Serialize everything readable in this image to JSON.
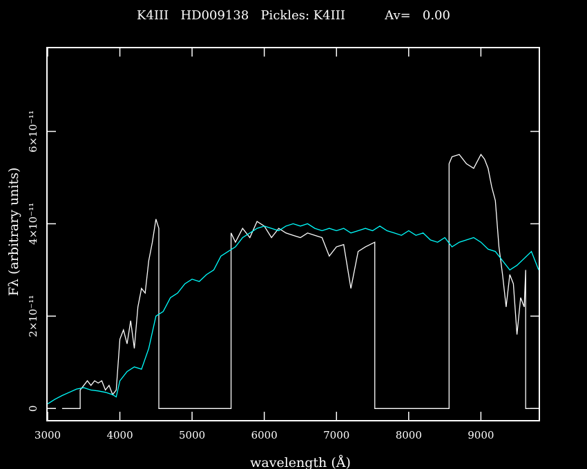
{
  "chart_data": {
    "type": "line",
    "title": "K4III   HD009138   Pickles: K4III          Av=   0.00",
    "xlabel": "wavelength (Å)",
    "ylabel": "Fλ (arbitrary units)",
    "xlim": [
      3000,
      9800
    ],
    "ylim": [
      -0.25,
      7.8
    ],
    "y_unit_note": "x10^-11",
    "xticks": [
      {
        "value": 3000,
        "label": "3000"
      },
      {
        "value": 4000,
        "label": "4000"
      },
      {
        "value": 5000,
        "label": "5000"
      },
      {
        "value": 6000,
        "label": "6000"
      },
      {
        "value": 7000,
        "label": "7000"
      },
      {
        "value": 8000,
        "label": "8000"
      },
      {
        "value": 9000,
        "label": "9000"
      }
    ],
    "yticks": [
      {
        "value": 0,
        "label": "0"
      },
      {
        "value": 2,
        "label": "2×10⁻¹¹"
      },
      {
        "value": 4,
        "label": "4×10⁻¹¹"
      },
      {
        "value": 6,
        "label": "6×10⁻¹¹"
      }
    ],
    "grid": false,
    "legend": "none",
    "series": [
      {
        "color": "#ffffff",
        "x": [
          3200,
          3450,
          3450,
          3500,
          3550,
          3600,
          3650,
          3700,
          3750,
          3800,
          3850,
          3900,
          3950,
          4000,
          4050,
          4100,
          4150,
          4200,
          4250,
          4300,
          4350,
          4400,
          4450,
          4500,
          4540,
          4540,
          5540,
          5540,
          5600,
          5700,
          5800,
          5900,
          6000,
          6100,
          6200,
          6300,
          6400,
          6500,
          6600,
          6700,
          6800,
          6900,
          7000,
          7100,
          7200,
          7300,
          7400,
          7530,
          7530,
          8560,
          8560,
          8600,
          8700,
          8800,
          8900,
          9000,
          9050,
          9100,
          9150,
          9200,
          9250,
          9300,
          9350,
          9400,
          9450,
          9500,
          9550,
          9600,
          9620,
          9620,
          9800
        ],
        "y": [
          0,
          0,
          0.4,
          0.5,
          0.6,
          0.5,
          0.6,
          0.55,
          0.6,
          0.4,
          0.5,
          0.3,
          0.4,
          1.5,
          1.7,
          1.4,
          1.9,
          1.3,
          2.2,
          2.6,
          2.5,
          3.2,
          3.6,
          4.1,
          3.9,
          0,
          0,
          3.8,
          3.6,
          3.9,
          3.7,
          4.05,
          3.95,
          3.7,
          3.9,
          3.8,
          3.75,
          3.7,
          3.8,
          3.75,
          3.7,
          3.3,
          3.5,
          3.55,
          2.6,
          3.4,
          3.5,
          3.6,
          0,
          0,
          5.3,
          5.45,
          5.5,
          5.3,
          5.2,
          5.5,
          5.4,
          5.2,
          4.8,
          4.5,
          3.5,
          2.9,
          2.2,
          2.9,
          2.7,
          1.6,
          2.4,
          2.2,
          3.0,
          0,
          0
        ]
      },
      {
        "color": "#00ffff",
        "x": [
          3000,
          3100,
          3200,
          3300,
          3400,
          3500,
          3600,
          3700,
          3800,
          3900,
          3950,
          4000,
          4100,
          4200,
          4300,
          4400,
          4500,
          4600,
          4700,
          4800,
          4900,
          5000,
          5100,
          5200,
          5300,
          5400,
          5500,
          5600,
          5700,
          5800,
          5900,
          6000,
          6100,
          6200,
          6300,
          6400,
          6500,
          6600,
          6700,
          6800,
          6900,
          7000,
          7100,
          7200,
          7300,
          7400,
          7500,
          7600,
          7700,
          7800,
          7900,
          8000,
          8100,
          8200,
          8300,
          8400,
          8500,
          8600,
          8700,
          8800,
          8900,
          9000,
          9100,
          9200,
          9300,
          9400,
          9500,
          9600,
          9700,
          9800
        ],
        "y": [
          0.1,
          0.2,
          0.28,
          0.35,
          0.42,
          0.45,
          0.4,
          0.38,
          0.35,
          0.3,
          0.25,
          0.6,
          0.8,
          0.9,
          0.85,
          1.3,
          2.0,
          2.1,
          2.4,
          2.5,
          2.7,
          2.8,
          2.75,
          2.9,
          3.0,
          3.3,
          3.4,
          3.5,
          3.7,
          3.8,
          3.9,
          3.95,
          3.9,
          3.85,
          3.95,
          4.0,
          3.95,
          4.0,
          3.9,
          3.85,
          3.9,
          3.85,
          3.9,
          3.8,
          3.85,
          3.9,
          3.85,
          3.95,
          3.85,
          3.8,
          3.75,
          3.85,
          3.75,
          3.8,
          3.65,
          3.6,
          3.7,
          3.5,
          3.6,
          3.65,
          3.7,
          3.6,
          3.45,
          3.4,
          3.2,
          3.0,
          3.1,
          3.25,
          3.4,
          3.0
        ]
      }
    ]
  }
}
